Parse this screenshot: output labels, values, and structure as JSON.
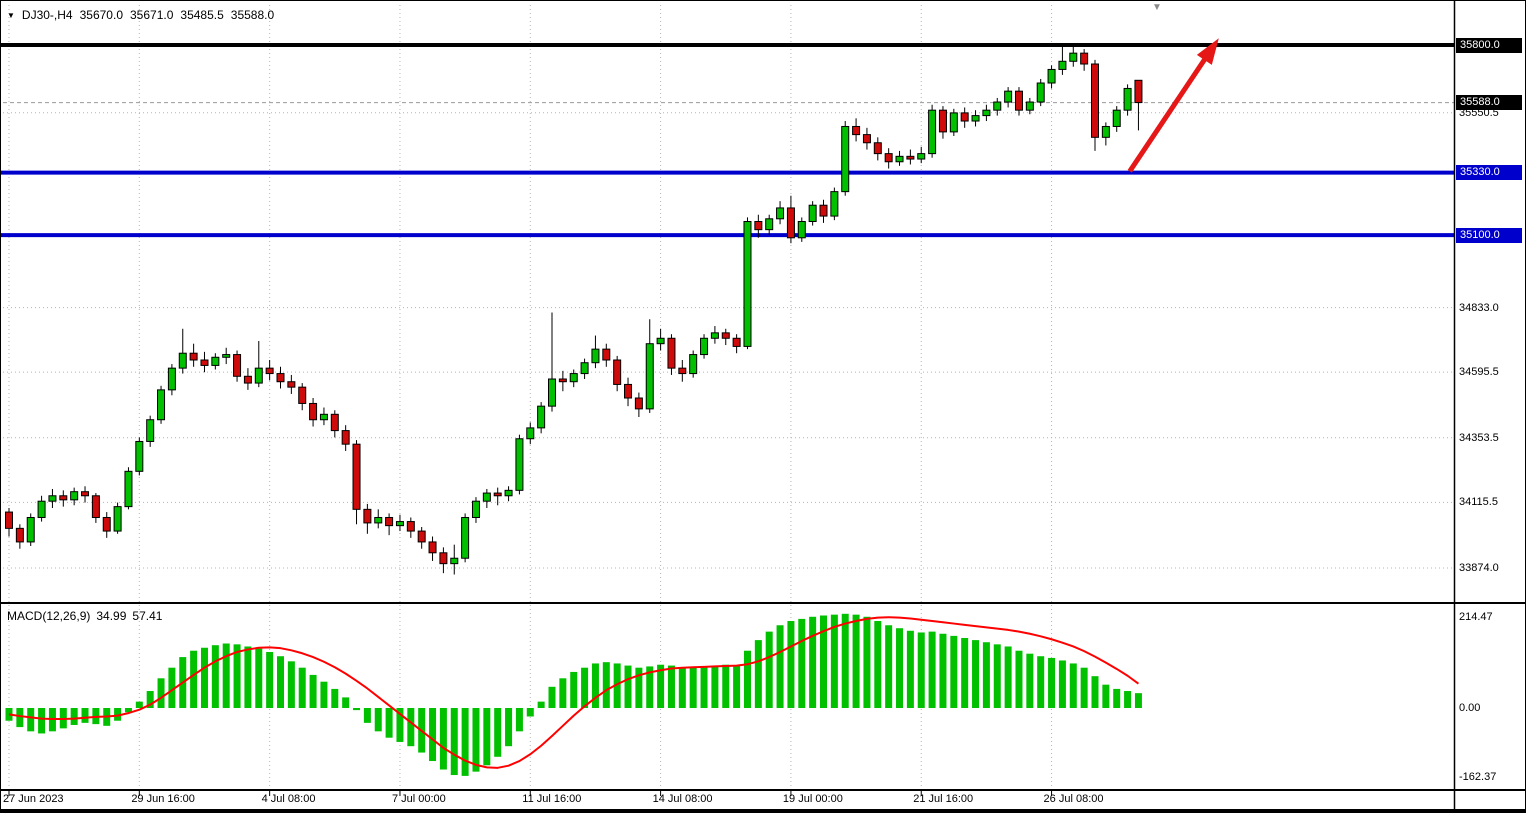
{
  "icons": {
    "chart_marker": "▼",
    "scroll_marker": "▼"
  },
  "header": {
    "symbol_period": "DJ30-,H4",
    "open": "35670.0",
    "high": "35671.0",
    "low": "35485.5",
    "close": "35588.0"
  },
  "indicator_header": {
    "name": "MACD(12,26,9)",
    "main": "34.99",
    "signal": "57.41"
  },
  "colors": {
    "up": "#00C000",
    "down": "#CF0A0A",
    "wick": "#000000",
    "grid": "#b4b4b4",
    "signal_line": "#FF0000",
    "level_black": "#000000",
    "level_blue": "#0000CC",
    "arrow": "#E51717",
    "axis_text": "#000000"
  },
  "price_axis": {
    "labels": [
      {
        "text": "35800.0",
        "price": 35800.0,
        "style": "black-box"
      },
      {
        "text": "35588.0",
        "price": 35588.0,
        "style": "black-box"
      },
      {
        "text": "35550.5",
        "price": 35550.5,
        "style": "plain"
      },
      {
        "text": "35330.0",
        "price": 35330.0,
        "style": "blue-box"
      },
      {
        "text": "35100.0",
        "price": 35100.0,
        "style": "blue-box"
      },
      {
        "text": "34833.0",
        "price": 34833.0,
        "style": "plain"
      },
      {
        "text": "34595.5",
        "price": 34595.5,
        "style": "plain"
      },
      {
        "text": "34353.5",
        "price": 34353.5,
        "style": "plain"
      },
      {
        "text": "34115.5",
        "price": 34115.5,
        "style": "plain"
      },
      {
        "text": "33874.0",
        "price": 33874.0,
        "style": "plain"
      }
    ]
  },
  "macd_axis": {
    "labels": [
      {
        "text": "214.47",
        "value": 214.47
      },
      {
        "text": "0.00",
        "value": 0
      },
      {
        "text": "-162.37",
        "value": -162.37
      }
    ]
  },
  "time_axis": {
    "labels": [
      {
        "text": "27 Jun 2023",
        "index": 0
      },
      {
        "text": "29 Jun 16:00",
        "index": 12
      },
      {
        "text": "4 Jul 08:00",
        "index": 24
      },
      {
        "text": "7 Jul 00:00",
        "index": 36
      },
      {
        "text": "11 Jul 16:00",
        "index": 48
      },
      {
        "text": "14 Jul 08:00",
        "index": 60
      },
      {
        "text": "19 Jul 00:00",
        "index": 72
      },
      {
        "text": "21 Jul 16:00",
        "index": 84
      },
      {
        "text": "26 Jul 08:00",
        "index": 96
      }
    ]
  },
  "chart_data": {
    "type": "candlestick",
    "symbol": "DJ30-",
    "timeframe": "H4",
    "last_ohlc": {
      "open": 35670.0,
      "high": 35671.0,
      "low": 35485.5,
      "close": 35588.0
    },
    "current_price": 35588.0,
    "price_range": [
      33850,
      35850
    ],
    "grid_prices": [
      35800.0,
      35550.5,
      35330.0,
      35100.0,
      34833.0,
      34595.5,
      34353.5,
      34115.5,
      33874.0
    ],
    "levels": [
      {
        "price": 35800.0,
        "color": "#000000",
        "width": 4,
        "role": "resistance"
      },
      {
        "price": 35330.0,
        "color": "#0000CC",
        "width": 4,
        "role": "support"
      },
      {
        "price": 35100.0,
        "color": "#0000CC",
        "width": 4,
        "role": "support"
      }
    ],
    "candles": [
      [
        34080,
        34095,
        33990,
        34020
      ],
      [
        34020,
        34035,
        33945,
        33970
      ],
      [
        33970,
        34075,
        33955,
        34060
      ],
      [
        34060,
        34140,
        34045,
        34120
      ],
      [
        34120,
        34165,
        34095,
        34140
      ],
      [
        34140,
        34160,
        34100,
        34125
      ],
      [
        34125,
        34170,
        34105,
        34155
      ],
      [
        34155,
        34175,
        34115,
        34140
      ],
      [
        34140,
        34150,
        34040,
        34060
      ],
      [
        34060,
        34080,
        33985,
        34010
      ],
      [
        34010,
        34115,
        34000,
        34100
      ],
      [
        34100,
        34245,
        34090,
        34230
      ],
      [
        34230,
        34355,
        34215,
        34340
      ],
      [
        34340,
        34435,
        34320,
        34420
      ],
      [
        34420,
        34545,
        34405,
        34530
      ],
      [
        34530,
        34625,
        34510,
        34610
      ],
      [
        34610,
        34755,
        34590,
        34665
      ],
      [
        34665,
        34700,
        34615,
        34640
      ],
      [
        34640,
        34670,
        34595,
        34620
      ],
      [
        34620,
        34665,
        34605,
        34650
      ],
      [
        34650,
        34685,
        34625,
        34660
      ],
      [
        34660,
        34675,
        34560,
        34580
      ],
      [
        34580,
        34610,
        34530,
        34555
      ],
      [
        34555,
        34710,
        34540,
        34610
      ],
      [
        34610,
        34640,
        34565,
        34590
      ],
      [
        34590,
        34615,
        34535,
        34560
      ],
      [
        34560,
        34585,
        34515,
        34540
      ],
      [
        34540,
        34555,
        34455,
        34480
      ],
      [
        34480,
        34500,
        34395,
        34420
      ],
      [
        34420,
        34465,
        34400,
        34440
      ],
      [
        34440,
        34455,
        34355,
        34380
      ],
      [
        34380,
        34400,
        34305,
        34330
      ],
      [
        34330,
        34345,
        34035,
        34090
      ],
      [
        34090,
        34110,
        34000,
        34040
      ],
      [
        34040,
        34090,
        34020,
        34060
      ],
      [
        34060,
        34075,
        33995,
        34030
      ],
      [
        34030,
        34070,
        34010,
        34045
      ],
      [
        34045,
        34060,
        33985,
        34010
      ],
      [
        34010,
        34025,
        33945,
        33970
      ],
      [
        33970,
        33990,
        33900,
        33930
      ],
      [
        33930,
        33950,
        33855,
        33890
      ],
      [
        33890,
        33960,
        33850,
        33910
      ],
      [
        33910,
        34075,
        33895,
        34060
      ],
      [
        34060,
        34135,
        34040,
        34120
      ],
      [
        34120,
        34165,
        34095,
        34150
      ],
      [
        34150,
        34170,
        34105,
        34140
      ],
      [
        34140,
        34175,
        34120,
        34160
      ],
      [
        34160,
        34365,
        34145,
        34350
      ],
      [
        34350,
        34410,
        34330,
        34390
      ],
      [
        34390,
        34485,
        34370,
        34470
      ],
      [
        34470,
        34815,
        34450,
        34570
      ],
      [
        34570,
        34600,
        34525,
        34560
      ],
      [
        34560,
        34605,
        34540,
        34590
      ],
      [
        34590,
        34645,
        34570,
        34630
      ],
      [
        34630,
        34730,
        34610,
        34680
      ],
      [
        34680,
        34700,
        34615,
        34640
      ],
      [
        34640,
        34655,
        34525,
        34550
      ],
      [
        34550,
        34575,
        34470,
        34500
      ],
      [
        34500,
        34520,
        34430,
        34460
      ],
      [
        34460,
        34790,
        34445,
        34700
      ],
      [
        34700,
        34755,
        34675,
        34720
      ],
      [
        34720,
        34735,
        34585,
        34610
      ],
      [
        34610,
        34640,
        34560,
        34590
      ],
      [
        34590,
        34675,
        34575,
        34660
      ],
      [
        34660,
        34735,
        34645,
        34720
      ],
      [
        34720,
        34765,
        34700,
        34740
      ],
      [
        34740,
        34755,
        34695,
        34720
      ],
      [
        34720,
        34735,
        34665,
        34690
      ],
      [
        34690,
        35165,
        34680,
        35150
      ],
      [
        35150,
        35175,
        35090,
        35120
      ],
      [
        35120,
        35175,
        35100,
        35160
      ],
      [
        35160,
        35225,
        35140,
        35200
      ],
      [
        35200,
        35245,
        35070,
        35090
      ],
      [
        35090,
        35165,
        35075,
        35150
      ],
      [
        35150,
        35225,
        35135,
        35210
      ],
      [
        35210,
        35230,
        35145,
        35170
      ],
      [
        35170,
        35275,
        35155,
        35260
      ],
      [
        35260,
        35520,
        35245,
        35500
      ],
      [
        35500,
        35530,
        35445,
        35470
      ],
      [
        35470,
        35495,
        35415,
        35440
      ],
      [
        35440,
        35460,
        35375,
        35400
      ],
      [
        35400,
        35420,
        35345,
        35370
      ],
      [
        35370,
        35410,
        35355,
        35390
      ],
      [
        35390,
        35415,
        35360,
        35380
      ],
      [
        35380,
        35425,
        35365,
        35400
      ],
      [
        35400,
        35580,
        35385,
        35560
      ],
      [
        35560,
        35575,
        35455,
        35480
      ],
      [
        35480,
        35565,
        35465,
        35550
      ],
      [
        35550,
        35570,
        35495,
        35520
      ],
      [
        35520,
        35560,
        35500,
        35540
      ],
      [
        35540,
        35580,
        35520,
        35560
      ],
      [
        35560,
        35605,
        35540,
        35590
      ],
      [
        35590,
        35645,
        35570,
        35630
      ],
      [
        35630,
        35645,
        35540,
        35560
      ],
      [
        35560,
        35605,
        35545,
        35590
      ],
      [
        35590,
        35675,
        35575,
        35660
      ],
      [
        35660,
        35725,
        35640,
        35710
      ],
      [
        35710,
        35800,
        35690,
        35740
      ],
      [
        35740,
        35805,
        35720,
        35770
      ],
      [
        35770,
        35785,
        35705,
        35730
      ],
      [
        35730,
        35745,
        35410,
        35460
      ],
      [
        35460,
        35515,
        35430,
        35500
      ],
      [
        35500,
        35575,
        35480,
        35560
      ],
      [
        35560,
        35655,
        35540,
        35640
      ],
      [
        35670,
        35671,
        35485.5,
        35588.0
      ]
    ],
    "macd": {
      "params": "12,26,9",
      "main_current": 34.99,
      "signal_current": 57.41,
      "range": [
        -162.37,
        214.47
      ],
      "histogram": [
        -30,
        -45,
        -55,
        -60,
        -55,
        -48,
        -40,
        -35,
        -38,
        -42,
        -30,
        -10,
        15,
        40,
        70,
        95,
        120,
        135,
        142,
        148,
        152,
        150,
        145,
        140,
        132,
        122,
        110,
        95,
        78,
        62,
        45,
        25,
        -5,
        -35,
        -55,
        -70,
        -80,
        -90,
        -105,
        -125,
        -145,
        -158,
        -160,
        -150,
        -135,
        -115,
        -90,
        -55,
        -20,
        15,
        50,
        70,
        85,
        95,
        105,
        108,
        105,
        100,
        95,
        98,
        102,
        100,
        96,
        95,
        97,
        100,
        102,
        100,
        135,
        160,
        180,
        195,
        205,
        210,
        215,
        218,
        220,
        222,
        220,
        215,
        205,
        195,
        188,
        182,
        178,
        180,
        175,
        170,
        165,
        160,
        155,
        150,
        145,
        135,
        128,
        122,
        118,
        112,
        105,
        95,
        75,
        55,
        45,
        40,
        34.99
      ],
      "signal": [
        -15,
        -19,
        -22,
        -25,
        -26,
        -26,
        -25,
        -23,
        -21,
        -20,
        -18,
        -12,
        -4,
        8,
        24,
        42,
        60,
        78,
        95,
        110,
        122,
        132,
        138,
        142,
        143,
        141,
        136,
        129,
        120,
        109,
        96,
        81,
        64,
        46,
        26,
        6,
        -14,
        -34,
        -54,
        -74,
        -94,
        -110,
        -124,
        -134,
        -140,
        -141,
        -136,
        -125,
        -109,
        -89,
        -66,
        -42,
        -18,
        4,
        24,
        42,
        56,
        68,
        77,
        84,
        89,
        93,
        95,
        96,
        97,
        98,
        99,
        100,
        103,
        110,
        120,
        132,
        145,
        158,
        170,
        181,
        191,
        199,
        205,
        210,
        213,
        214,
        213,
        211,
        208,
        205,
        202,
        199,
        196,
        193,
        190,
        187,
        184,
        180,
        175,
        169,
        162,
        154,
        145,
        134,
        121,
        107,
        92,
        76,
        57.41
      ]
    },
    "annotations": {
      "trend_arrow": {
        "type": "arrow",
        "color": "#E51717",
        "from_index": 103.2,
        "from_price": 35335,
        "to_index": 111.4,
        "to_price": 35825
      }
    }
  }
}
